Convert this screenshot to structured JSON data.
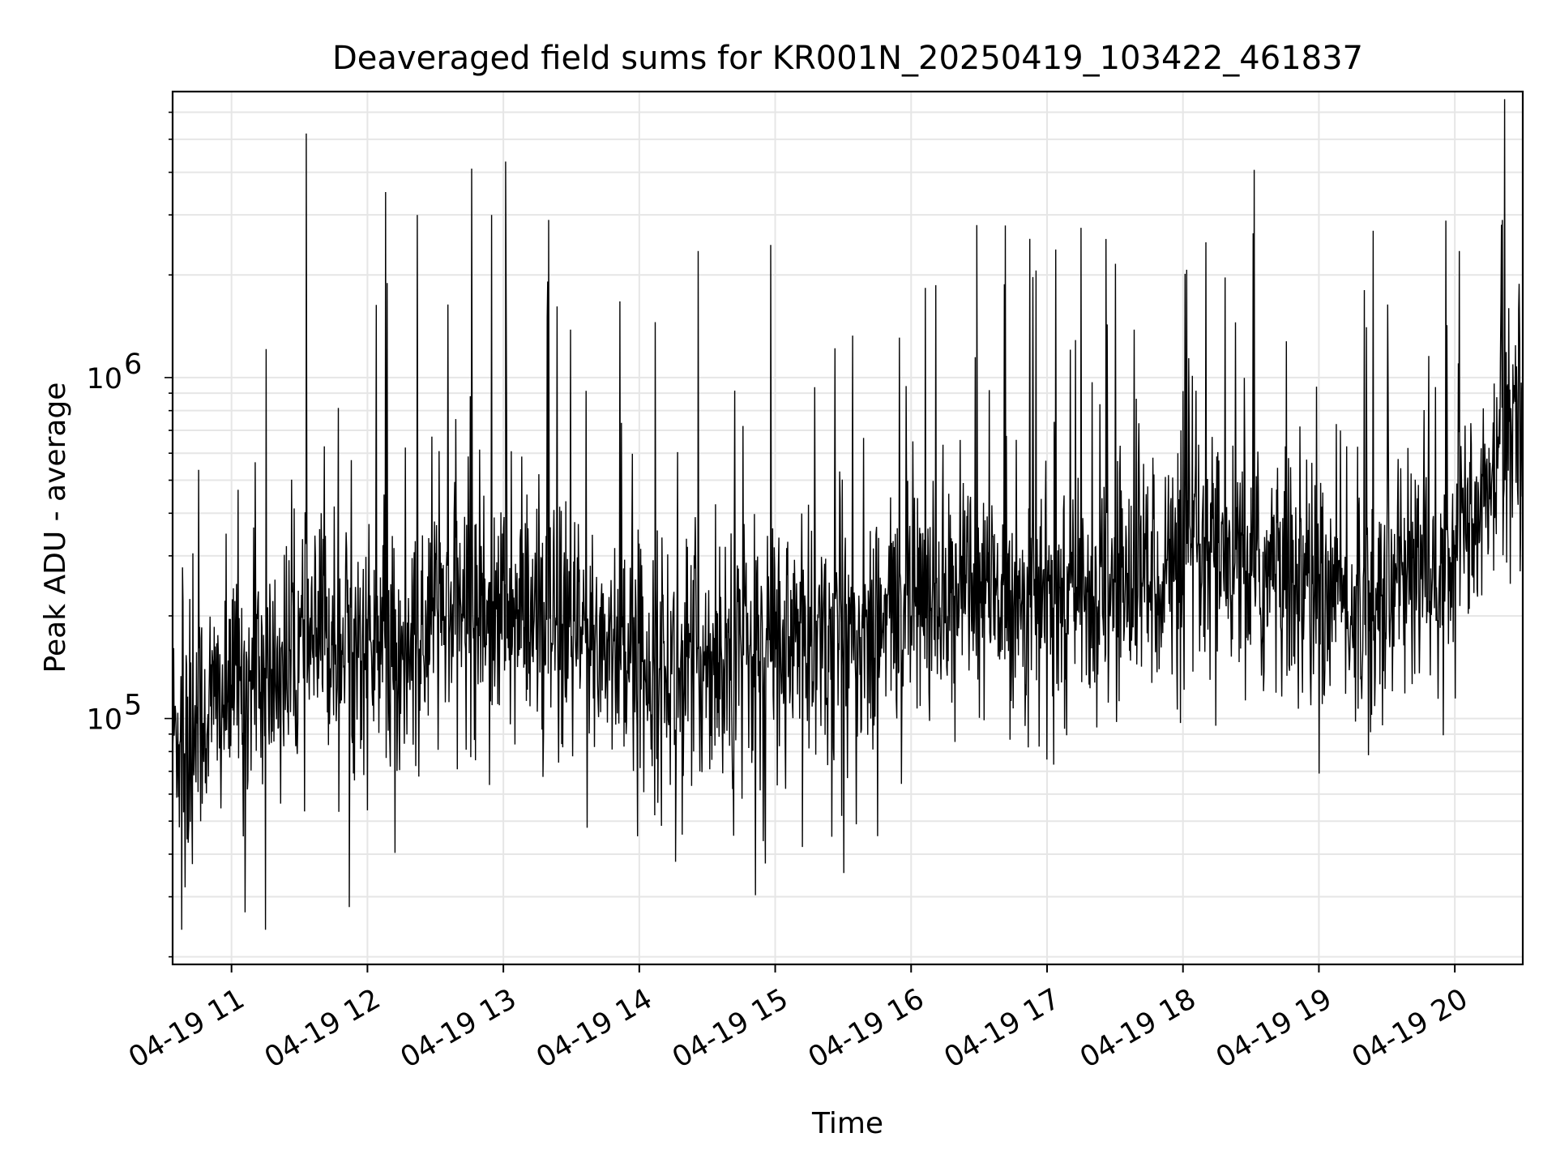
{
  "chart_data": {
    "type": "line",
    "title": "Deaveraged field sums for KR001N_20250419_103422_461837",
    "xlabel": "Time",
    "ylabel": "Peak ADU - average",
    "y_scale": "log",
    "ylim": [
      19000,
      6900000
    ],
    "xlim": [
      "04-19 10:34",
      "04-19 20:30"
    ],
    "grid": true,
    "line_color": "#000000",
    "grid_color": "#e6e6e6",
    "x_ticks": [
      "04-19 11",
      "04-19 12",
      "04-19 13",
      "04-19 14",
      "04-19 15",
      "04-19 16",
      "04-19 17",
      "04-19 18",
      "04-19 19",
      "04-19 20"
    ],
    "y_ticks": [
      {
        "base": "10",
        "exp": "5",
        "value": 100000
      },
      {
        "base": "10",
        "exp": "6",
        "value": 1000000
      }
    ],
    "series": [
      {
        "x": [
          "04-19 10:34",
          "04-19 10:45",
          "04-19 11:00",
          "04-19 11:15",
          "04-19 11:30",
          "04-19 11:45",
          "04-19 12:00",
          "04-19 12:15",
          "04-19 12:30",
          "04-19 12:45",
          "04-19 13:00",
          "04-19 13:15",
          "04-19 13:30",
          "04-19 13:45",
          "04-19 14:00",
          "04-19 14:15",
          "04-19 14:30",
          "04-19 14:45",
          "04-19 15:00",
          "04-19 15:15",
          "04-19 15:30",
          "04-19 15:45",
          "04-19 16:00",
          "04-19 16:15",
          "04-19 16:30",
          "04-19 16:45",
          "04-19 17:00",
          "04-19 17:15",
          "04-19 17:30",
          "04-19 17:45",
          "04-19 18:00",
          "04-19 18:15",
          "04-19 18:30",
          "04-19 18:45",
          "04-19 19:00",
          "04-19 19:15",
          "04-19 19:30",
          "04-19 19:45",
          "04-19 20:00",
          "04-19 20:15",
          "04-19 20:30"
        ],
        "y": [
          90000,
          100000,
          120000,
          130000,
          150000,
          180000,
          160000,
          150000,
          200000,
          220000,
          200000,
          190000,
          170000,
          170000,
          150000,
          140000,
          150000,
          160000,
          170000,
          170000,
          180000,
          180000,
          220000,
          230000,
          230000,
          230000,
          220000,
          230000,
          250000,
          270000,
          280000,
          280000,
          270000,
          250000,
          230000,
          220000,
          230000,
          270000,
          350000,
          450000,
          1000000
        ]
      }
    ],
    "spike_extremes": {
      "max": [
        {
          "x": "04-19 11:33",
          "y": 5200000
        },
        {
          "x": "04-19 12:08",
          "y": 3500000
        },
        {
          "x": "04-19 12:22",
          "y": 3000000
        },
        {
          "x": "04-19 12:46",
          "y": 4100000
        },
        {
          "x": "04-19 13:01",
          "y": 4300000
        },
        {
          "x": "04-19 13:20",
          "y": 2900000
        },
        {
          "x": "04-19 14:26",
          "y": 2350000
        },
        {
          "x": "04-19 14:58",
          "y": 2450000
        },
        {
          "x": "04-19 16:29",
          "y": 2800000
        },
        {
          "x": "04-19 17:15",
          "y": 2750000
        },
        {
          "x": "04-19 17:26",
          "y": 2550000
        },
        {
          "x": "04-19 20:02",
          "y": 2350000
        },
        {
          "x": "04-19 20:21",
          "y": 2900000
        }
      ],
      "min": [
        {
          "x": "04-19 10:38",
          "y": 24000
        },
        {
          "x": "04-19 11:06",
          "y": 27000
        },
        {
          "x": "04-19 11:15",
          "y": 24000
        },
        {
          "x": "04-19 11:52",
          "y": 28000
        },
        {
          "x": "04-19 14:16",
          "y": 38000
        },
        {
          "x": "04-19 15:12",
          "y": 42000
        },
        {
          "x": "04-19 15:25",
          "y": 45000
        }
      ]
    }
  }
}
